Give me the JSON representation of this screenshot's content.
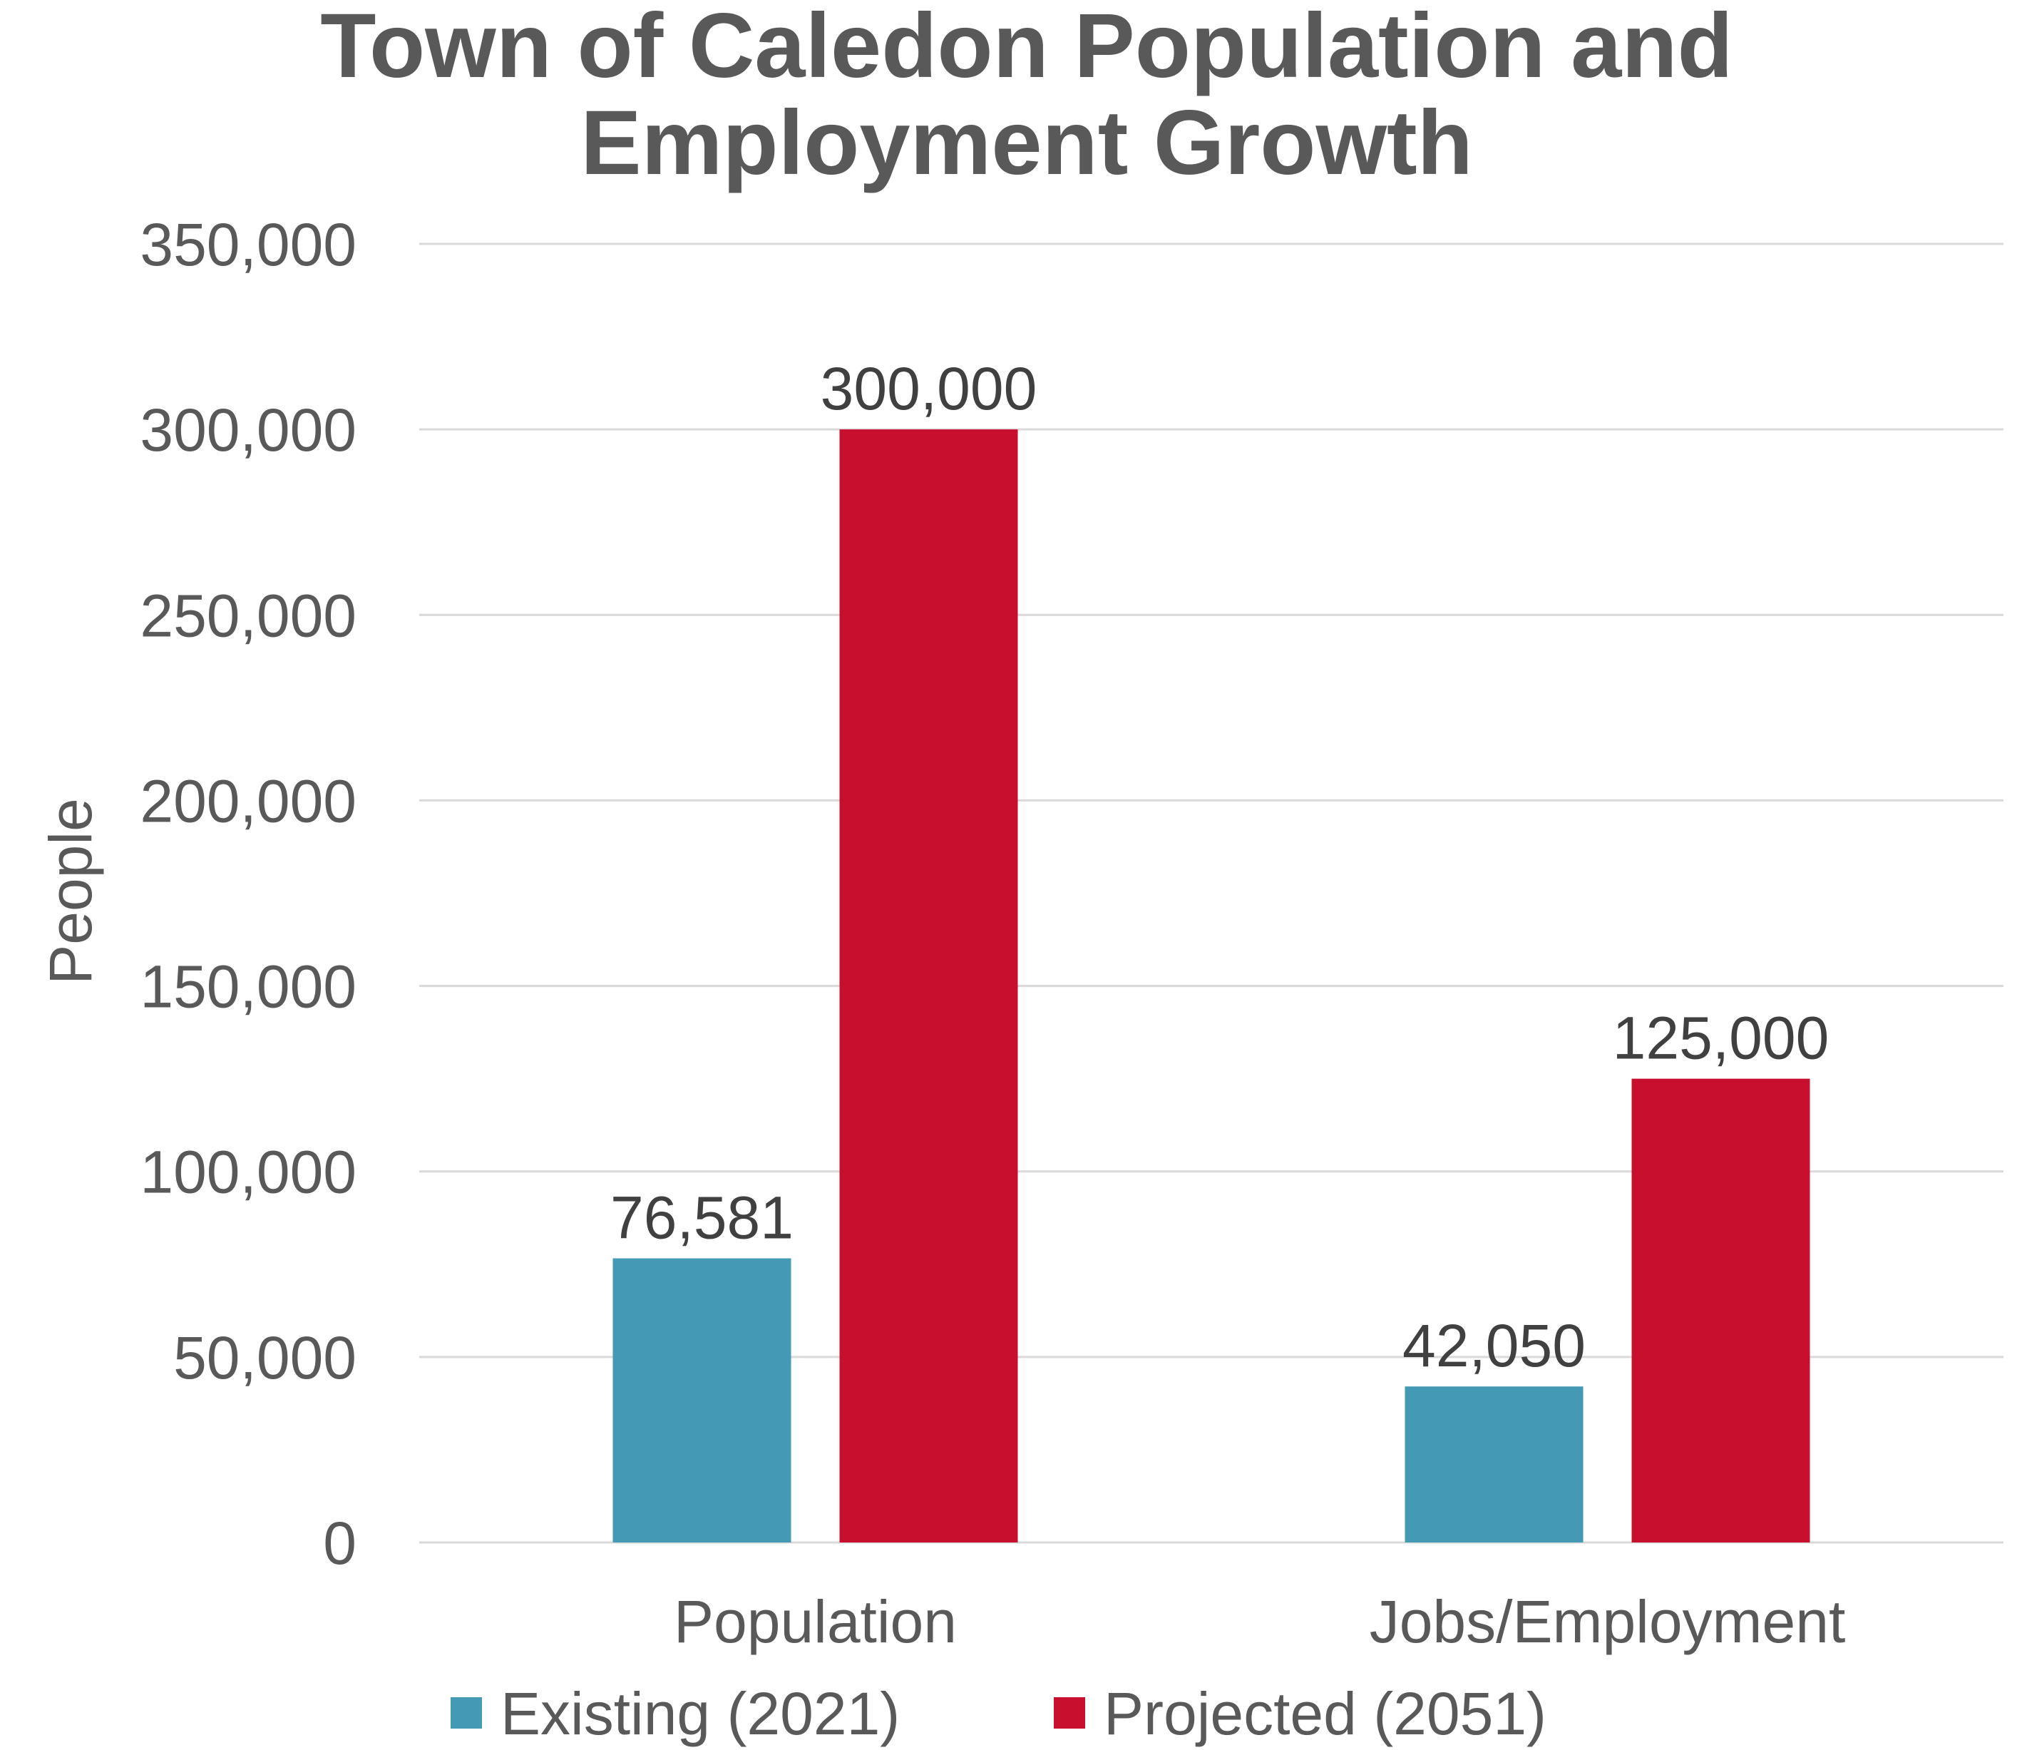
{
  "chart_data": {
    "type": "bar",
    "title_lines": [
      "Town of Caledon Population and",
      "Employment Growth"
    ],
    "ylabel": "People",
    "xlabel": "",
    "ylim": [
      0,
      350000
    ],
    "yticks": [
      0,
      50000,
      100000,
      150000,
      200000,
      250000,
      300000,
      350000
    ],
    "ytick_labels": [
      "0",
      "50,000",
      "100,000",
      "150,000",
      "200,000",
      "250,000",
      "300,000",
      "350,000"
    ],
    "categories": [
      "Population",
      "Jobs/Employment"
    ],
    "series": [
      {
        "name": "Existing (2021)",
        "color": "#4499B5",
        "values": [
          76581,
          42050
        ],
        "labels": [
          "76,581",
          "42,050"
        ]
      },
      {
        "name": "Projected (2051)",
        "color": "#C8102E",
        "values": [
          300000,
          125000
        ],
        "labels": [
          "300,000",
          "125,000"
        ]
      }
    ],
    "grid": true,
    "legend_position": "bottom"
  }
}
